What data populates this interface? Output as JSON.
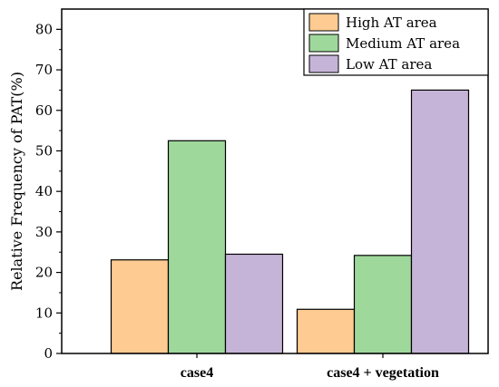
{
  "chart_data": {
    "type": "bar",
    "categories": [
      "case4",
      "case4 + vegetation"
    ],
    "series": [
      {
        "name": "High AT area",
        "values": [
          23.1,
          10.9
        ],
        "color": "#fecb92"
      },
      {
        "name": "Medium AT area",
        "values": [
          52.5,
          24.2
        ],
        "color": "#9fd89b"
      },
      {
        "name": "Low AT area",
        "values": [
          24.5,
          65.0
        ],
        "color": "#c6b4d8"
      }
    ],
    "ylabel": "Relative Frequency of PAT(%)",
    "xlabel": "",
    "ylim": [
      0,
      85
    ],
    "yticks": [
      0,
      10,
      20,
      30,
      40,
      50,
      60,
      70,
      80
    ],
    "ytick_labels": [
      "0",
      "10",
      "20",
      "30",
      "40",
      "50",
      "60",
      "70",
      "80"
    ],
    "grid": false,
    "legend_position": "top-right"
  }
}
